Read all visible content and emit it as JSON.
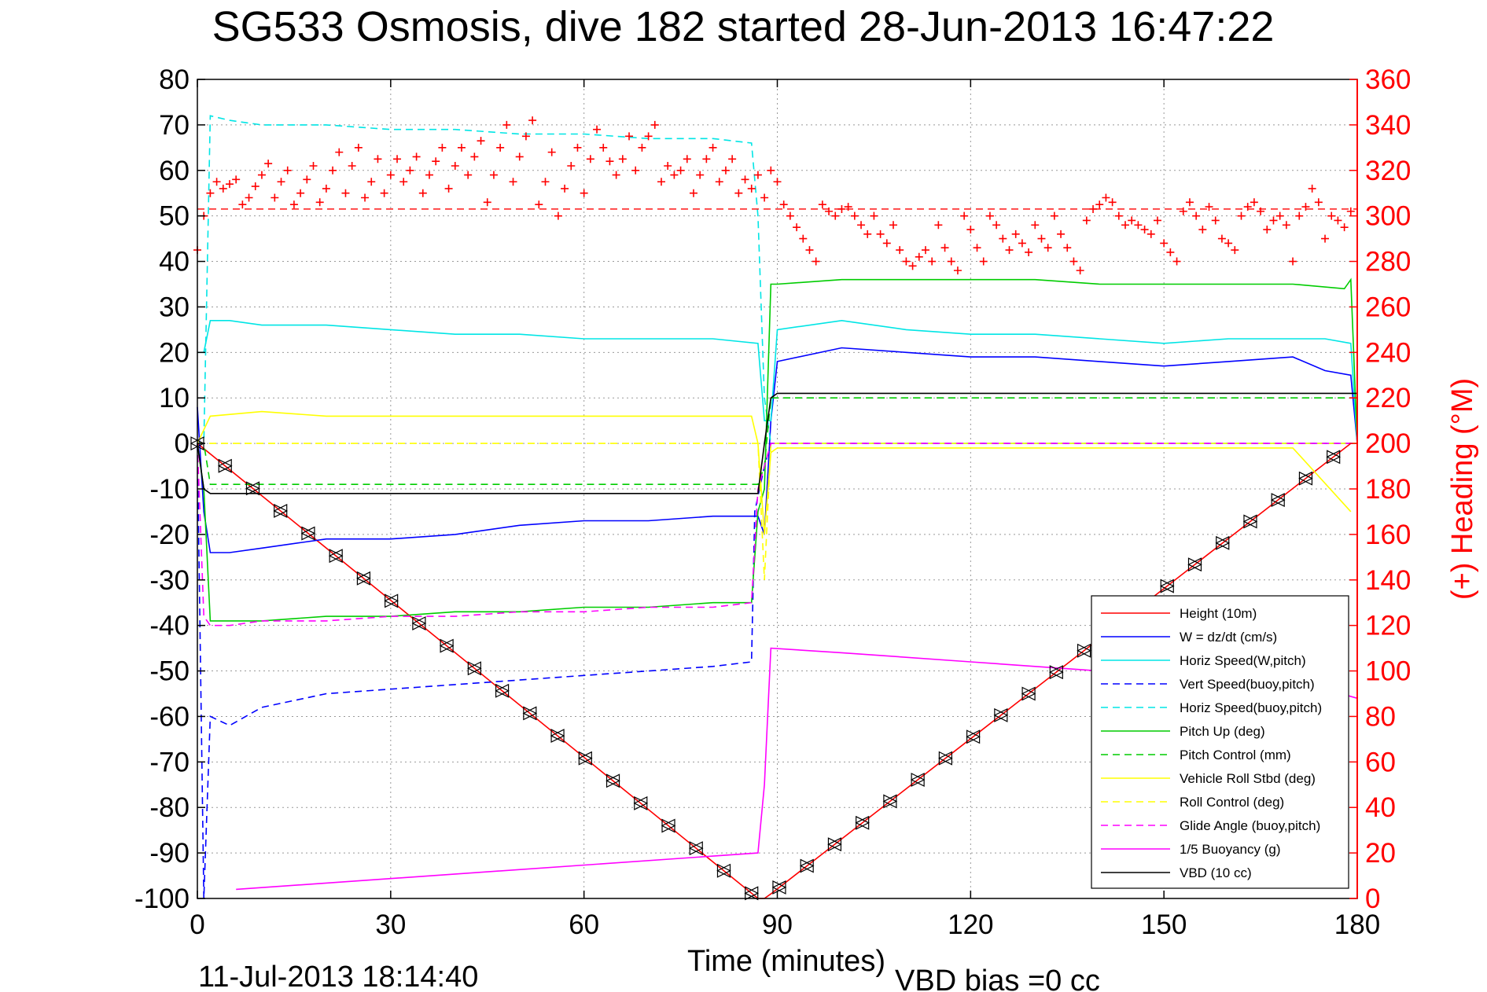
{
  "chart_data": {
    "type": "line",
    "title": "SG533 Osmosis, dive 182 started 28-Jun-2013 16:47:22",
    "xlabel": "Time (minutes)",
    "ylabel": "",
    "y2label": "(+) Heading (°M)",
    "xlim": [
      0,
      180
    ],
    "ylim": [
      -100,
      80
    ],
    "y2lim": [
      0,
      360
    ],
    "x_ticks": [
      0,
      30,
      60,
      90,
      120,
      150,
      180
    ],
    "y_ticks": [
      80,
      70,
      60,
      50,
      40,
      30,
      20,
      10,
      0,
      -10,
      -20,
      -30,
      -40,
      -50,
      -60,
      -70,
      -80,
      -90,
      -100
    ],
    "y2_ticks": [
      360,
      340,
      320,
      300,
      280,
      260,
      240,
      220,
      200,
      180,
      160,
      140,
      120,
      100,
      80,
      60,
      40,
      20,
      0
    ],
    "grid": true,
    "legend_position": "lower-right",
    "footer_date": "11-Jul-2013 18:14:40",
    "footer_note": "VBD bias =0 cc",
    "series": [
      {
        "name": "Height (10m)",
        "color": "#ff0000",
        "style": "solid",
        "x": [
          0,
          87,
          88,
          89,
          179
        ],
        "y": [
          0,
          -100,
          -100,
          -99,
          0
        ]
      },
      {
        "name": "W = dz/dt (cm/s)",
        "color": "#0000ff",
        "style": "solid",
        "x": [
          0,
          1,
          2,
          5,
          10,
          20,
          30,
          40,
          50,
          60,
          70,
          80,
          87,
          88,
          89,
          90,
          100,
          110,
          120,
          130,
          140,
          150,
          160,
          170,
          175,
          179,
          180
        ],
        "y": [
          8,
          -15,
          -24,
          -24,
          -23,
          -21,
          -21,
          -20,
          -18,
          -17,
          -17,
          -16,
          -16,
          -20,
          5,
          18,
          21,
          20,
          19,
          19,
          18,
          17,
          18,
          19,
          16,
          15,
          0
        ]
      },
      {
        "name": "Horiz Speed(W,pitch)",
        "color": "#00e5e5",
        "style": "solid",
        "x": [
          0,
          1,
          2,
          5,
          10,
          20,
          30,
          40,
          50,
          60,
          70,
          80,
          87,
          88,
          89,
          90,
          100,
          110,
          120,
          130,
          140,
          150,
          160,
          170,
          175,
          179,
          180
        ],
        "y": [
          20,
          20,
          27,
          27,
          26,
          26,
          25,
          24,
          24,
          23,
          23,
          23,
          22,
          5,
          5,
          25,
          27,
          25,
          24,
          24,
          23,
          22,
          23,
          23,
          23,
          22,
          0
        ]
      },
      {
        "name": "Vert Speed(buoy,pitch)",
        "color": "#0000ff",
        "style": "dashed",
        "x": [
          0,
          1,
          2,
          5,
          10,
          20,
          30,
          40,
          50,
          60,
          70,
          80,
          86,
          86.5,
          88,
          89,
          180
        ],
        "y": [
          0,
          -100,
          -60,
          -62,
          -58,
          -55,
          -54,
          -53,
          -52,
          -51,
          -50,
          -49,
          -48,
          -15,
          -5,
          0,
          0
        ]
      },
      {
        "name": "Horiz Speed(buoy,pitch)",
        "color": "#00e5e5",
        "style": "dashed",
        "x": [
          0,
          1,
          2,
          5,
          10,
          20,
          30,
          40,
          50,
          60,
          70,
          80,
          86,
          87,
          88,
          89,
          180
        ],
        "y": [
          0,
          0,
          72,
          71,
          70,
          70,
          69,
          69,
          68,
          68,
          67,
          67,
          66,
          50,
          10,
          0,
          0
        ]
      },
      {
        "name": "Pitch Up (deg)",
        "color": "#00cc00",
        "style": "solid",
        "x": [
          0,
          1,
          2,
          5,
          10,
          20,
          30,
          40,
          50,
          60,
          70,
          80,
          86,
          87,
          88,
          89,
          90,
          100,
          110,
          120,
          130,
          140,
          150,
          160,
          170,
          178,
          179,
          180
        ],
        "y": [
          0,
          -10,
          -39,
          -39,
          -39,
          -38,
          -38,
          -37,
          -37,
          -36,
          -36,
          -35,
          -35,
          -15,
          -10,
          35,
          35,
          36,
          36,
          36,
          36,
          35,
          35,
          35,
          35,
          34,
          36,
          0
        ]
      },
      {
        "name": "Pitch Control (mm)",
        "color": "#00cc00",
        "style": "dashed",
        "x": [
          0,
          1,
          2,
          86,
          87,
          88,
          89,
          90,
          180
        ],
        "y": [
          0,
          0,
          -9,
          -9,
          -9,
          -5,
          10,
          10,
          10
        ]
      },
      {
        "name": "Vehicle Roll Stbd (deg)",
        "color": "#ffff00",
        "style": "solid",
        "x": [
          0,
          2,
          10,
          20,
          30,
          40,
          50,
          60,
          70,
          80,
          86,
          87,
          88,
          89,
          90,
          100,
          110,
          120,
          130,
          140,
          150,
          160,
          170,
          179
        ],
        "y": [
          0,
          6,
          7,
          6,
          6,
          6,
          6,
          6,
          6,
          6,
          6,
          0,
          -20,
          -2,
          -1,
          -1,
          -1,
          -1,
          -1,
          -1,
          -1,
          -1,
          -1,
          -15
        ]
      },
      {
        "name": "Roll Control (deg)",
        "color": "#ffff00",
        "style": "dashed",
        "x": [
          0,
          2,
          87,
          88,
          89,
          180
        ],
        "y": [
          0,
          0,
          0,
          -30,
          0,
          0
        ]
      },
      {
        "name": "Glide Angle (buoy,pitch)",
        "color": "#ff00ff",
        "style": "dashed",
        "x": [
          0,
          1,
          2,
          5,
          10,
          20,
          30,
          40,
          50,
          60,
          70,
          80,
          86,
          87,
          88,
          89,
          180
        ],
        "y": [
          0,
          -38,
          -40,
          -40,
          -39,
          -39,
          -38,
          -38,
          -37,
          -37,
          -36,
          -36,
          -35,
          -10,
          -5,
          0,
          0
        ]
      },
      {
        "name": "1/5 Buoyancy (g)",
        "color": "#ff00ff",
        "style": "solid",
        "x": [
          6,
          87,
          88,
          89,
          100,
          120,
          140,
          160,
          175,
          180
        ],
        "y": [
          -98,
          -90,
          -75,
          -45,
          -46,
          -48,
          -50,
          -52,
          -54,
          -56
        ]
      },
      {
        "name": "VBD (10 cc)",
        "color": "#000000",
        "style": "solid",
        "x": [
          0,
          1,
          2,
          86,
          87,
          88,
          89,
          90,
          100,
          120,
          140,
          160,
          180
        ],
        "y": [
          0,
          -10,
          -11,
          -11,
          -11,
          0,
          10,
          11,
          11,
          11,
          11,
          11,
          11
        ]
      }
    ],
    "heading": {
      "name": "(+) Heading (°M)",
      "color": "#ff0000",
      "marker": "+",
      "reference_value": 303,
      "x": [
        0,
        1,
        2,
        3,
        4,
        5,
        6,
        7,
        8,
        9,
        10,
        11,
        12,
        13,
        14,
        15,
        16,
        17,
        18,
        19,
        20,
        21,
        22,
        23,
        24,
        25,
        26,
        27,
        28,
        29,
        30,
        31,
        32,
        33,
        34,
        35,
        36,
        37,
        38,
        39,
        40,
        41,
        42,
        43,
        44,
        45,
        46,
        47,
        48,
        49,
        50,
        51,
        52,
        53,
        54,
        55,
        56,
        57,
        58,
        59,
        60,
        61,
        62,
        63,
        64,
        65,
        66,
        67,
        68,
        69,
        70,
        71,
        72,
        73,
        74,
        75,
        76,
        77,
        78,
        79,
        80,
        81,
        82,
        83,
        84,
        85,
        86,
        87,
        88,
        89,
        90,
        91,
        92,
        93,
        94,
        95,
        96,
        97,
        98,
        99,
        100,
        101,
        102,
        103,
        104,
        105,
        106,
        107,
        108,
        109,
        110,
        111,
        112,
        113,
        114,
        115,
        116,
        117,
        118,
        119,
        120,
        121,
        122,
        123,
        124,
        125,
        126,
        127,
        128,
        129,
        130,
        131,
        132,
        133,
        134,
        135,
        136,
        137,
        138,
        139,
        140,
        141,
        142,
        143,
        144,
        145,
        146,
        147,
        148,
        149,
        150,
        151,
        152,
        153,
        154,
        155,
        156,
        157,
        158,
        159,
        160,
        161,
        162,
        163,
        164,
        165,
        166,
        167,
        168,
        169,
        170,
        171,
        172,
        173,
        174,
        175,
        176,
        177,
        178,
        179
      ],
      "y": [
        285,
        300,
        310,
        315,
        312,
        314,
        316,
        305,
        308,
        313,
        318,
        323,
        308,
        315,
        320,
        305,
        310,
        316,
        322,
        306,
        312,
        320,
        328,
        310,
        322,
        330,
        308,
        315,
        325,
        310,
        318,
        325,
        315,
        320,
        326,
        310,
        318,
        324,
        330,
        312,
        322,
        330,
        318,
        326,
        333,
        306,
        318,
        330,
        340,
        315,
        326,
        335,
        342,
        305,
        315,
        328,
        300,
        312,
        322,
        330,
        310,
        325,
        338,
        330,
        324,
        318,
        325,
        335,
        320,
        330,
        335,
        340,
        315,
        322,
        318,
        320,
        325,
        310,
        318,
        325,
        330,
        315,
        320,
        325,
        310,
        316,
        312,
        318,
        308,
        320,
        315,
        305,
        300,
        295,
        290,
        285,
        280,
        305,
        302,
        300,
        303,
        304,
        300,
        296,
        292,
        300,
        292,
        288,
        296,
        285,
        280,
        278,
        282,
        285,
        280,
        296,
        286,
        280,
        276,
        300,
        294,
        286,
        280,
        300,
        296,
        290,
        285,
        292,
        288,
        284,
        296,
        290,
        286,
        300,
        292,
        286,
        280,
        276,
        298,
        303,
        305,
        308,
        306,
        300,
        296,
        298,
        296,
        294,
        292,
        298,
        288,
        284,
        280,
        302,
        306,
        300,
        294,
        304,
        298,
        290,
        288,
        285,
        300,
        304,
        306,
        302,
        294,
        298,
        300,
        296,
        280,
        300,
        304,
        312,
        306,
        290,
        300,
        298,
        295,
        302
      ]
    }
  }
}
